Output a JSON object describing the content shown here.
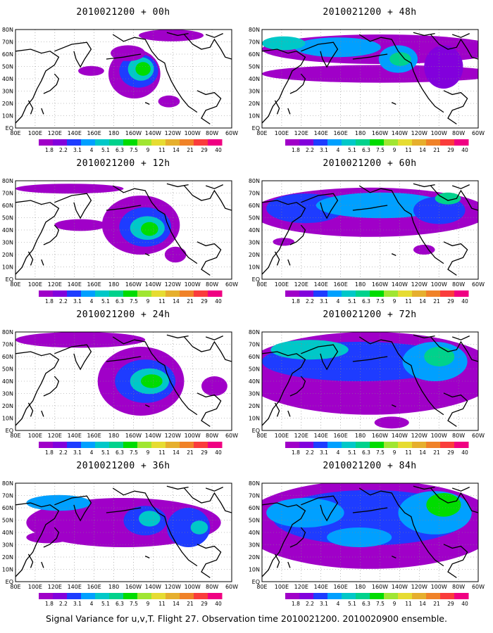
{
  "panels": [
    {
      "title": "2010021200 + 00h",
      "blobs": [
        [
          0.55,
          0.45,
          0.12,
          0.25,
          0
        ],
        [
          0.57,
          0.42,
          0.09,
          0.17,
          2
        ],
        [
          0.58,
          0.4,
          0.06,
          0.12,
          4
        ],
        [
          0.59,
          0.4,
          0.035,
          0.07,
          6
        ],
        [
          0.52,
          0.24,
          0.08,
          0.08,
          0
        ],
        [
          0.71,
          0.73,
          0.05,
          0.06,
          0
        ],
        [
          0.35,
          0.42,
          0.06,
          0.05,
          0
        ],
        [
          0.72,
          0.06,
          0.15,
          0.06,
          0
        ]
      ]
    },
    {
      "title": "2010021200 + 48h",
      "blobs": [
        [
          0.55,
          0.2,
          0.55,
          0.15,
          0
        ],
        [
          0.55,
          0.45,
          0.55,
          0.09,
          0
        ],
        [
          0.35,
          0.18,
          0.2,
          0.1,
          3
        ],
        [
          0.63,
          0.3,
          0.09,
          0.14,
          3
        ],
        [
          0.64,
          0.3,
          0.05,
          0.07,
          5
        ],
        [
          0.84,
          0.38,
          0.09,
          0.22,
          1
        ],
        [
          0.1,
          0.14,
          0.1,
          0.07,
          4
        ]
      ]
    },
    {
      "title": "2010021200 + 12h",
      "blobs": [
        [
          0.58,
          0.45,
          0.18,
          0.3,
          0
        ],
        [
          0.6,
          0.47,
          0.12,
          0.2,
          2
        ],
        [
          0.61,
          0.48,
          0.08,
          0.12,
          4
        ],
        [
          0.62,
          0.49,
          0.04,
          0.07,
          6
        ],
        [
          0.3,
          0.45,
          0.12,
          0.06,
          0
        ],
        [
          0.25,
          0.08,
          0.25,
          0.05,
          0
        ],
        [
          0.74,
          0.75,
          0.05,
          0.08,
          0
        ]
      ]
    },
    {
      "title": "2010021200 + 60h",
      "blobs": [
        [
          0.5,
          0.32,
          0.55,
          0.25,
          0
        ],
        [
          0.2,
          0.28,
          0.18,
          0.15,
          2
        ],
        [
          0.55,
          0.25,
          0.3,
          0.13,
          3
        ],
        [
          0.82,
          0.3,
          0.12,
          0.14,
          2
        ],
        [
          0.86,
          0.18,
          0.06,
          0.06,
          5
        ],
        [
          0.75,
          0.7,
          0.05,
          0.05,
          0
        ],
        [
          0.1,
          0.62,
          0.05,
          0.04,
          0
        ]
      ]
    },
    {
      "title": "2010021200 + 24h",
      "blobs": [
        [
          0.58,
          0.5,
          0.2,
          0.35,
          0
        ],
        [
          0.6,
          0.5,
          0.14,
          0.22,
          2
        ],
        [
          0.62,
          0.5,
          0.09,
          0.13,
          4
        ],
        [
          0.63,
          0.5,
          0.05,
          0.07,
          6
        ],
        [
          0.3,
          0.08,
          0.3,
          0.08,
          0
        ],
        [
          0.92,
          0.55,
          0.06,
          0.1,
          0
        ]
      ]
    },
    {
      "title": "2010021200 + 72h",
      "blobs": [
        [
          0.5,
          0.42,
          0.6,
          0.42,
          0
        ],
        [
          0.45,
          0.3,
          0.45,
          0.2,
          2
        ],
        [
          0.22,
          0.18,
          0.18,
          0.1,
          4
        ],
        [
          0.8,
          0.3,
          0.15,
          0.2,
          3
        ],
        [
          0.82,
          0.25,
          0.07,
          0.1,
          5
        ],
        [
          0.6,
          0.92,
          0.08,
          0.06,
          0
        ]
      ]
    },
    {
      "title": "2010021200 + 36h",
      "blobs": [
        [
          0.5,
          0.4,
          0.45,
          0.25,
          0
        ],
        [
          0.6,
          0.38,
          0.1,
          0.15,
          2
        ],
        [
          0.62,
          0.36,
          0.05,
          0.08,
          4
        ],
        [
          0.2,
          0.2,
          0.15,
          0.08,
          3
        ],
        [
          0.8,
          0.45,
          0.1,
          0.2,
          2
        ],
        [
          0.85,
          0.45,
          0.04,
          0.07,
          4
        ],
        [
          0.15,
          0.55,
          0.1,
          0.06,
          0
        ]
      ]
    },
    {
      "title": "2010021200 + 84h",
      "blobs": [
        [
          0.5,
          0.42,
          0.6,
          0.45,
          0
        ],
        [
          0.5,
          0.35,
          0.45,
          0.28,
          2
        ],
        [
          0.2,
          0.3,
          0.18,
          0.15,
          3
        ],
        [
          0.8,
          0.3,
          0.17,
          0.22,
          3
        ],
        [
          0.84,
          0.22,
          0.08,
          0.12,
          6
        ],
        [
          0.45,
          0.55,
          0.15,
          0.1,
          3
        ]
      ]
    }
  ],
  "lon_ticks": [
    "80E",
    "100E",
    "120E",
    "140E",
    "160E",
    "180",
    "160W",
    "140W",
    "120W",
    "100W",
    "80W",
    "60W"
  ],
  "lat_ticks": [
    "80N",
    "70N",
    "60N",
    "50N",
    "40N",
    "30N",
    "20N",
    "10N",
    "EQ"
  ],
  "colorbar": {
    "labels": [
      "1.8",
      "2.2",
      "3.1",
      "4",
      "5.1",
      "6.3",
      "7.5",
      "9",
      "11",
      "14",
      "21",
      "29",
      "40"
    ],
    "colors": [
      "#a000c8",
      "#8200dc",
      "#1e3cff",
      "#00a0ff",
      "#00c8c8",
      "#00d28c",
      "#00dc00",
      "#a0e632",
      "#e6dc32",
      "#e6af2d",
      "#f08228",
      "#fa3c3c",
      "#f00082"
    ]
  },
  "footer": "Signal Variance for u,v,T. Flight 27. Observation time 2010021200. 2010020900 ensemble."
}
